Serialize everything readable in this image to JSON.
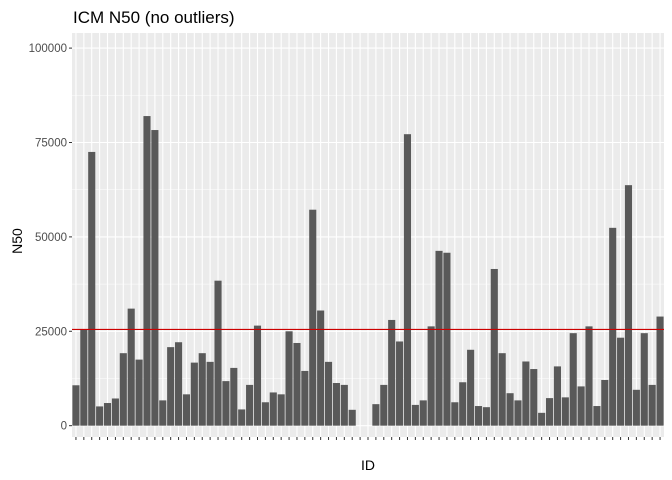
{
  "chart_data": {
    "type": "bar",
    "title": "ICM N50 (no outliers)",
    "xlabel": "ID",
    "ylabel": "N50",
    "ylim": [
      -3000,
      104000
    ],
    "yticks": [
      0,
      25000,
      50000,
      75000,
      100000
    ],
    "ytick_labels": [
      "0",
      "25000",
      "50000",
      "75000",
      "100000"
    ],
    "grid": true,
    "legend": "none",
    "x_tick_labels_visible": false,
    "values": [
      10700,
      25500,
      72500,
      5100,
      6000,
      7200,
      19200,
      31000,
      17500,
      82000,
      78300,
      6700,
      20800,
      22100,
      8300,
      16700,
      19200,
      16900,
      38400,
      11800,
      15300,
      4300,
      10800,
      26500,
      6200,
      8800,
      8300,
      25000,
      21900,
      14500,
      57200,
      30500,
      16900,
      11300,
      10800,
      4200,
      0,
      0,
      5700,
      10800,
      28000,
      22300,
      77200,
      5500,
      6700,
      26300,
      46300,
      45800,
      6200,
      11500,
      20100,
      5200,
      4900,
      41500,
      19200,
      8600,
      6700,
      17000,
      15000,
      3400,
      7300,
      15700,
      7500,
      24500,
      10400,
      26300,
      5200,
      12100,
      52400,
      23300,
      63700,
      9500,
      24500,
      10800,
      28900
    ],
    "reference_line": 25500,
    "colors": {
      "bar": "#595959",
      "reference_line": "#cc0000",
      "panel": "#ebebeb",
      "grid": "#ffffff"
    }
  }
}
